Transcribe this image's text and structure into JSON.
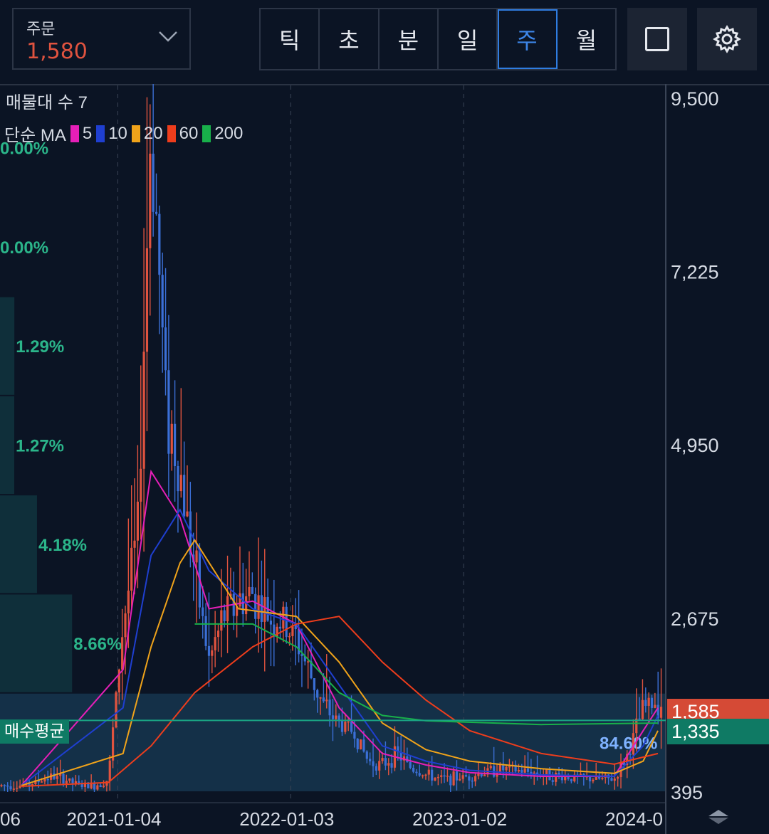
{
  "header": {
    "order_label": "주문",
    "order_value": "1,580",
    "timeframes": [
      "틱",
      "초",
      "분",
      "일",
      "주",
      "월"
    ],
    "active_timeframe": "주",
    "icons": [
      "chevron-down-icon",
      "square-icon",
      "gear-icon"
    ]
  },
  "legend": {
    "title": "매물대 수 7",
    "ma_prefix": "단순 MA",
    "ma": [
      {
        "period": "5",
        "color": "#e61fb8"
      },
      {
        "period": "10",
        "color": "#1f3fd0"
      },
      {
        "period": "20",
        "color": "#f0a31a"
      },
      {
        "period": "60",
        "color": "#ee3d1c"
      },
      {
        "period": "200",
        "color": "#18b04a"
      }
    ]
  },
  "tags": {
    "current_price": "1,585",
    "avg_price": "1,335",
    "avg_label": "매수평균",
    "return_pct": "84.60%"
  },
  "colors": {
    "up": "#e0533f",
    "down": "#3b6fd6",
    "profile_band": "#0f2f3a",
    "pct_text": "#2bb58a",
    "avg_line": "#1aa383"
  },
  "chart_data": {
    "type": "candlestick",
    "interval": "weekly",
    "y_ticks": [
      "9,500",
      "7,225",
      "4,950",
      "2,675",
      "395"
    ],
    "ylim": [
      395,
      9500
    ],
    "x_ticks": [
      "06",
      "2021-01-04",
      "2022-01-03",
      "2023-01-02",
      "2024-0"
    ],
    "price_series": [
      [
        "2020-06",
        480
      ],
      [
        "2020-07",
        520
      ],
      [
        "2020-08",
        600
      ],
      [
        "2020-09",
        560
      ],
      [
        "2020-10",
        480
      ],
      [
        "2020-11",
        470
      ],
      [
        "2020-12",
        560
      ],
      [
        "2021-01",
        2600
      ],
      [
        "2021-02",
        3800
      ],
      [
        "2021-03",
        9300
      ],
      [
        "2021-04",
        5500
      ],
      [
        "2021-05",
        4600
      ],
      [
        "2021-06",
        3300
      ],
      [
        "2021-07",
        2100
      ],
      [
        "2021-08",
        2700
      ],
      [
        "2021-09",
        2900
      ],
      [
        "2021-10",
        3000
      ],
      [
        "2021-11",
        2700
      ],
      [
        "2021-12",
        2600
      ],
      [
        "2022-01",
        2400
      ],
      [
        "2022-02",
        1900
      ],
      [
        "2022-03",
        1500
      ],
      [
        "2022-04",
        1300
      ],
      [
        "2022-05",
        1200
      ],
      [
        "2022-06",
        800
      ],
      [
        "2022-07",
        750
      ],
      [
        "2022-08",
        900
      ],
      [
        "2022-09",
        700
      ],
      [
        "2022-10",
        620
      ],
      [
        "2022-11",
        560
      ],
      [
        "2022-12",
        580
      ],
      [
        "2023-01",
        600
      ],
      [
        "2023-03",
        700
      ],
      [
        "2023-05",
        660
      ],
      [
        "2023-07",
        600
      ],
      [
        "2023-09",
        570
      ],
      [
        "2023-11",
        560
      ],
      [
        "2023-12",
        900
      ],
      [
        "2024-01",
        1500
      ],
      [
        "2024-02",
        1580
      ]
    ],
    "ma_series": {
      "5": [
        [
          "2020-06",
          480
        ],
        [
          "2021-01",
          2000
        ],
        [
          "2021-03",
          4600
        ],
        [
          "2021-05",
          4000
        ],
        [
          "2021-07",
          2800
        ],
        [
          "2021-10",
          2900
        ],
        [
          "2022-01",
          2600
        ],
        [
          "2022-04",
          1500
        ],
        [
          "2022-07",
          900
        ],
        [
          "2022-10",
          750
        ],
        [
          "2023-01",
          650
        ],
        [
          "2023-06",
          600
        ],
        [
          "2023-11",
          600
        ],
        [
          "2024-01",
          1200
        ],
        [
          "2024-02",
          1500
        ]
      ],
      "10": [
        [
          "2020-06",
          480
        ],
        [
          "2021-01",
          1500
        ],
        [
          "2021-03",
          3500
        ],
        [
          "2021-05",
          4100
        ],
        [
          "2021-07",
          3300
        ],
        [
          "2021-10",
          2800
        ],
        [
          "2022-01",
          2600
        ],
        [
          "2022-04",
          1800
        ],
        [
          "2022-07",
          1000
        ],
        [
          "2022-10",
          800
        ],
        [
          "2023-01",
          680
        ],
        [
          "2023-06",
          620
        ],
        [
          "2023-11",
          600
        ],
        [
          "2024-01",
          1000
        ],
        [
          "2024-02",
          1400
        ]
      ],
      "20": [
        [
          "2020-06",
          480
        ],
        [
          "2021-01",
          900
        ],
        [
          "2021-03",
          2300
        ],
        [
          "2021-05",
          3400
        ],
        [
          "2021-06",
          3700
        ],
        [
          "2021-09",
          2800
        ],
        [
          "2022-01",
          2700
        ],
        [
          "2022-04",
          2100
        ],
        [
          "2022-07",
          1300
        ],
        [
          "2022-10",
          950
        ],
        [
          "2023-01",
          800
        ],
        [
          "2023-06",
          700
        ],
        [
          "2023-11",
          640
        ],
        [
          "2024-01",
          800
        ],
        [
          "2024-02",
          1200
        ]
      ],
      "60": [
        [
          "2020-06",
          470
        ],
        [
          "2020-12",
          520
        ],
        [
          "2021-03",
          1000
        ],
        [
          "2021-06",
          1700
        ],
        [
          "2021-10",
          2300
        ],
        [
          "2022-01",
          2600
        ],
        [
          "2022-04",
          2700
        ],
        [
          "2022-07",
          2100
        ],
        [
          "2022-10",
          1600
        ],
        [
          "2023-01",
          1200
        ],
        [
          "2023-06",
          900
        ],
        [
          "2023-11",
          760
        ],
        [
          "2024-02",
          900
        ]
      ],
      "200": [
        [
          "2021-06",
          2600
        ],
        [
          "2021-10",
          2600
        ],
        [
          "2022-01",
          2300
        ],
        [
          "2022-04",
          1700
        ],
        [
          "2022-07",
          1400
        ],
        [
          "2022-10",
          1330
        ],
        [
          "2023-06",
          1280
        ],
        [
          "2024-02",
          1300
        ]
      ]
    },
    "volume_profile": {
      "label": "매물대 수 7",
      "bins": [
        {
          "pct": "0.00%"
        },
        {
          "pct": "0.00%"
        },
        {
          "pct": "1.29%"
        },
        {
          "pct": "1.27%"
        },
        {
          "pct": "4.18%"
        },
        {
          "pct": "8.66%"
        },
        {
          "pct": "84.60%"
        }
      ]
    }
  }
}
